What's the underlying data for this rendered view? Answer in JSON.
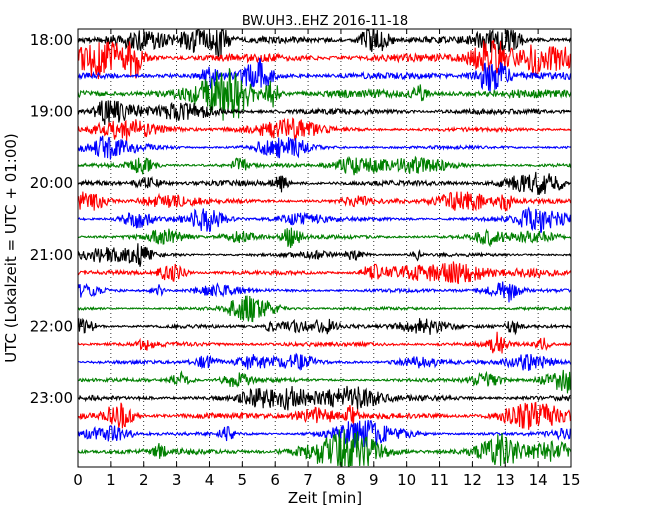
{
  "chart_data": {
    "type": "line",
    "title": "BW.UH3..EHZ 2016-11-18",
    "xlabel": "Zeit  [min]",
    "ylabel": "UTC (Lokalzeit = UTC + 01:00)",
    "xlim": [
      0,
      15
    ],
    "x_ticks": [
      0,
      1,
      2,
      3,
      4,
      5,
      6,
      7,
      8,
      9,
      10,
      11,
      12,
      13,
      14,
      15
    ],
    "y_tick_labels": [
      "18:00",
      "19:00",
      "20:00",
      "21:00",
      "22:00",
      "23:00"
    ],
    "grid": "vertical dotted",
    "colors": [
      "#000000",
      "#ff0000",
      "#0000ff",
      "#008000"
    ],
    "traces": [
      {
        "start": "18:00",
        "color": "#000000",
        "amplitude": 0.55
      },
      {
        "start": "18:15",
        "color": "#ff0000",
        "amplitude": 0.7
      },
      {
        "start": "18:30",
        "color": "#0000ff",
        "amplitude": 0.6
      },
      {
        "start": "18:45",
        "color": "#008000",
        "amplitude": 0.75
      },
      {
        "start": "19:00",
        "color": "#000000",
        "amplitude": 0.5
      },
      {
        "start": "19:15",
        "color": "#ff0000",
        "amplitude": 0.35
      },
      {
        "start": "19:30",
        "color": "#0000ff",
        "amplitude": 0.3
      },
      {
        "start": "19:45",
        "color": "#008000",
        "amplitude": 0.35
      },
      {
        "start": "20:00",
        "color": "#000000",
        "amplitude": 0.45
      },
      {
        "start": "20:15",
        "color": "#ff0000",
        "amplitude": 0.4
      },
      {
        "start": "20:30",
        "color": "#0000ff",
        "amplitude": 0.35
      },
      {
        "start": "20:45",
        "color": "#008000",
        "amplitude": 0.35
      },
      {
        "start": "21:00",
        "color": "#000000",
        "amplitude": 0.3
      },
      {
        "start": "21:15",
        "color": "#ff0000",
        "amplitude": 0.35
      },
      {
        "start": "21:30",
        "color": "#0000ff",
        "amplitude": 0.3
      },
      {
        "start": "21:45",
        "color": "#008000",
        "amplitude": 0.25
      },
      {
        "start": "22:00",
        "color": "#000000",
        "amplitude": 0.3
      },
      {
        "start": "22:15",
        "color": "#ff0000",
        "amplitude": 0.4
      },
      {
        "start": "22:30",
        "color": "#0000ff",
        "amplitude": 0.3
      },
      {
        "start": "22:45",
        "color": "#008000",
        "amplitude": 0.3
      },
      {
        "start": "23:00",
        "color": "#000000",
        "amplitude": 0.45
      },
      {
        "start": "23:15",
        "color": "#ff0000",
        "amplitude": 0.5
      },
      {
        "start": "23:30",
        "color": "#0000ff",
        "amplitude": 0.3
      },
      {
        "start": "23:45",
        "color": "#008000",
        "amplitude": 0.55
      }
    ]
  }
}
